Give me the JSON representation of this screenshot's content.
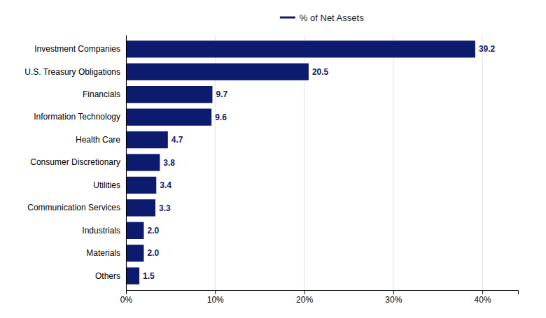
{
  "chart_data": {
    "type": "bar",
    "orientation": "horizontal",
    "categories": [
      "Others",
      "Materials",
      "Industrials",
      "Communication Services",
      "Utilities",
      "Consumer Discretionary",
      "Health Care",
      "Information Technology",
      "Financials",
      "U.S. Treasury Obligations",
      "Investment Companies"
    ],
    "series": [
      {
        "name": "% of Net Assets",
        "color": "#0d1b6e",
        "values": [
          1.5,
          2.0,
          2.0,
          3.3,
          3.4,
          3.8,
          4.7,
          9.6,
          9.7,
          20.5,
          39.2
        ],
        "value_labels": [
          "1.5",
          "2.0",
          "2.0",
          "3.3",
          "3.4",
          "3.8",
          "4.7",
          "9.6",
          "9.7",
          "20.5",
          "39.2"
        ]
      }
    ],
    "xlim": [
      0,
      44
    ],
    "xticks": [
      {
        "value": 0,
        "label": "0%"
      },
      {
        "value": 10,
        "label": "10%"
      },
      {
        "value": 20,
        "label": "20%"
      },
      {
        "value": 30,
        "label": "30%"
      },
      {
        "value": 40,
        "label": "40%"
      }
    ],
    "grid": true,
    "legend": "top",
    "data_labels": true
  }
}
